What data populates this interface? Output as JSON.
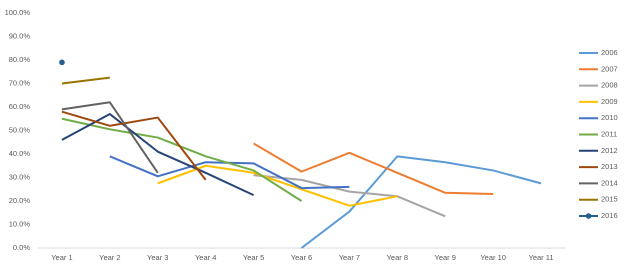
{
  "chart_data": {
    "type": "line",
    "categories": [
      "Year 1",
      "Year 2",
      "Year 3",
      "Year 4",
      "Year 5",
      "Year 6",
      "Year 7",
      "Year 8",
      "Year 9",
      "Year 10",
      "Year 11"
    ],
    "series": [
      {
        "name": "2006",
        "color": "#5b9bd5",
        "values": [
          null,
          null,
          null,
          null,
          null,
          0,
          15.5,
          39,
          36.5,
          33,
          27.5
        ]
      },
      {
        "name": "2007",
        "color": "#ed7d31",
        "values": [
          null,
          null,
          null,
          null,
          44.5,
          32.5,
          40.5,
          32,
          23.5,
          23,
          null
        ]
      },
      {
        "name": "2008",
        "color": "#a5a5a5",
        "values": [
          null,
          null,
          null,
          null,
          31,
          29,
          24,
          22,
          13.5,
          null,
          null
        ]
      },
      {
        "name": "2009",
        "color": "#ffc000",
        "values": [
          null,
          null,
          27.5,
          35,
          32,
          25,
          18,
          22,
          null,
          null,
          null
        ]
      },
      {
        "name": "2010",
        "color": "#4472c4",
        "values": [
          null,
          39,
          30.5,
          36.5,
          36,
          25.5,
          26,
          null,
          null,
          null,
          null
        ]
      },
      {
        "name": "2011",
        "color": "#70ad47",
        "values": [
          55,
          50.5,
          47,
          39,
          33,
          20,
          null,
          null,
          null,
          null,
          null
        ]
      },
      {
        "name": "2012",
        "color": "#264478",
        "values": [
          46,
          57,
          41,
          32,
          22.5,
          null,
          null,
          null,
          null,
          null,
          null
        ]
      },
      {
        "name": "2013",
        "color": "#9e480e",
        "values": [
          58,
          52,
          55.5,
          29,
          null,
          null,
          null,
          null,
          null,
          null,
          null
        ]
      },
      {
        "name": "2014",
        "color": "#636363",
        "values": [
          59,
          62,
          32,
          null,
          null,
          null,
          null,
          null,
          null,
          null,
          null
        ]
      },
      {
        "name": "2015",
        "color": "#997300",
        "values": [
          70,
          72.5,
          null,
          null,
          null,
          null,
          null,
          null,
          null,
          null,
          null
        ]
      },
      {
        "name": "2016",
        "color": "#255e91",
        "markers": true,
        "values": [
          79,
          null,
          null,
          null,
          null,
          null,
          null,
          null,
          null,
          null,
          null
        ]
      }
    ],
    "ylim": [
      0,
      100
    ],
    "yticks": [
      {
        "value": 0,
        "label": "0.0%"
      },
      {
        "value": 10,
        "label": "10.0%"
      },
      {
        "value": 20,
        "label": "20.0%"
      },
      {
        "value": 30,
        "label": "30.0%"
      },
      {
        "value": 40,
        "label": "40.0%"
      },
      {
        "value": 50,
        "label": "50.0%"
      },
      {
        "value": 60,
        "label": "60.0%"
      },
      {
        "value": 70,
        "label": "70.0%"
      },
      {
        "value": 80,
        "label": "80.0%"
      },
      {
        "value": 90,
        "label": "90.0%"
      },
      {
        "value": 100,
        "label": "100.0%"
      }
    ],
    "grid": false,
    "legend": "right"
  }
}
